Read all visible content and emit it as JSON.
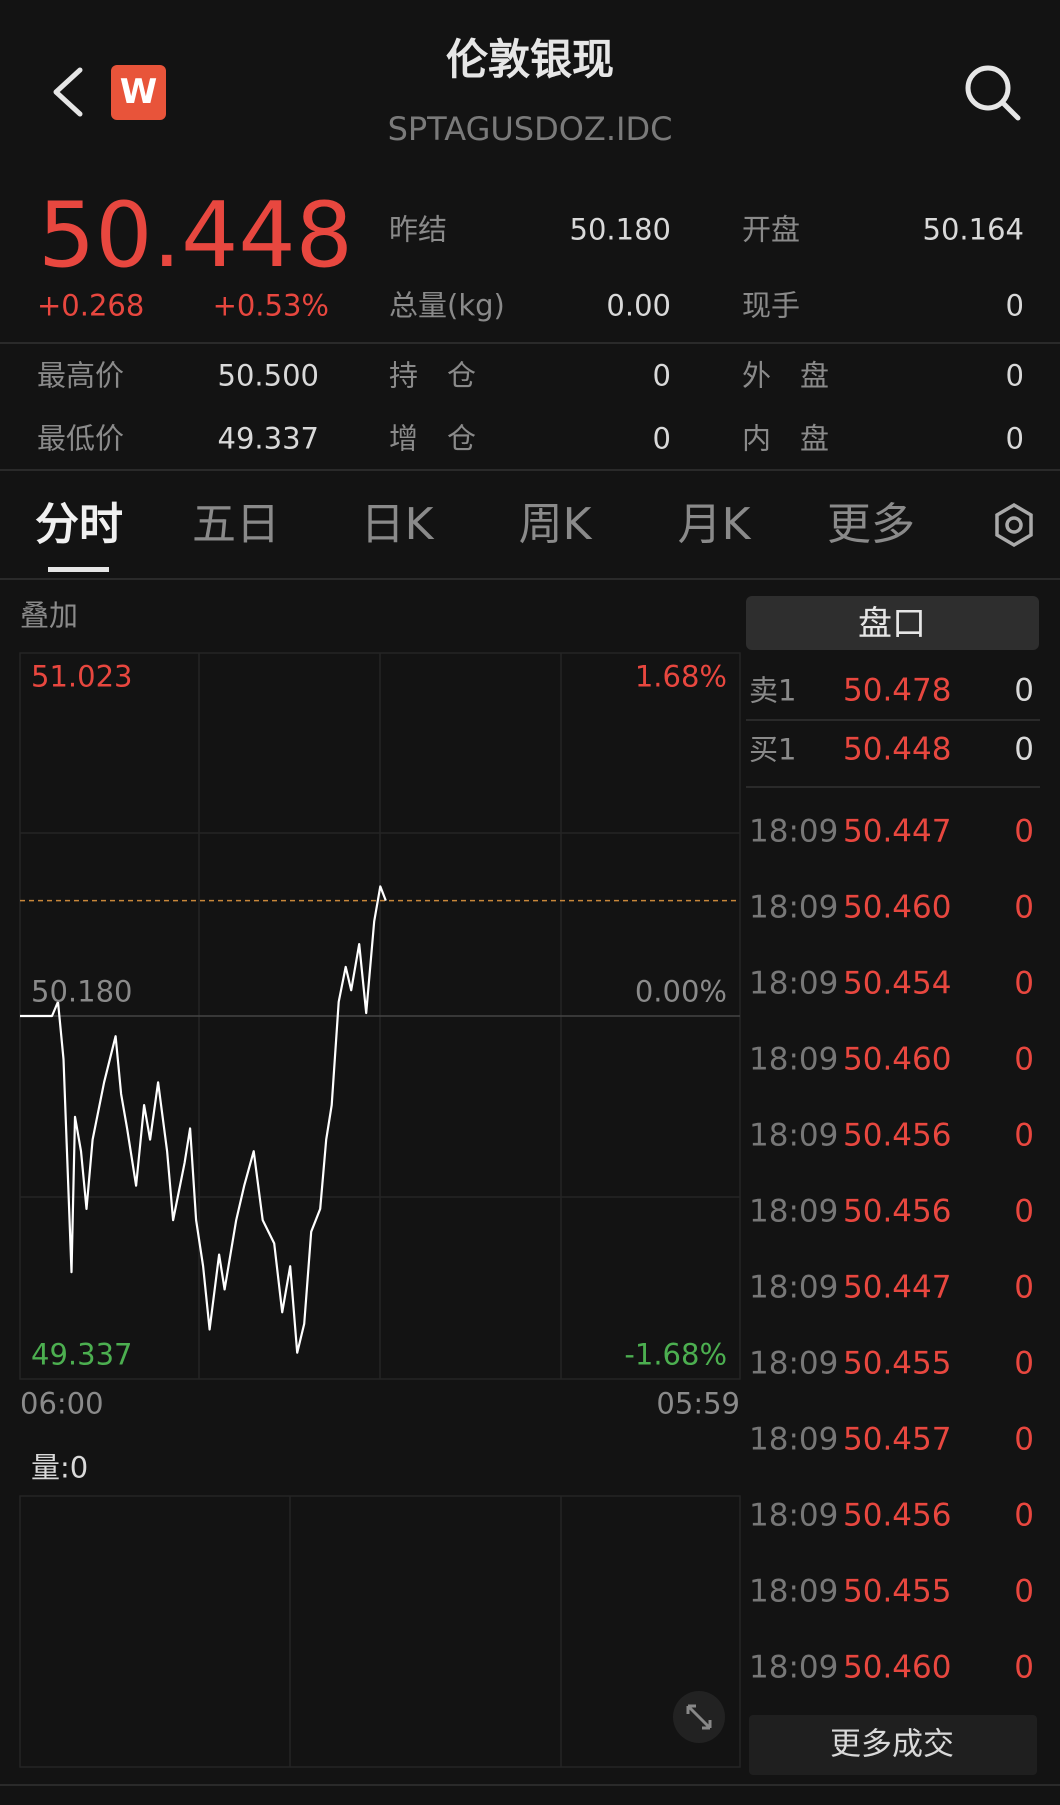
{
  "header": {
    "title": "伦敦银现",
    "subtitle": "SPTAGUSDOZ.IDC"
  },
  "quote": {
    "price": "50.448",
    "change": "+0.268",
    "change_pct": "+0.53%",
    "stats_top": [
      [
        {
          "label": "昨结",
          "value": "50.180"
        },
        {
          "label": "开盘",
          "value": "50.164"
        }
      ],
      [
        {
          "label": "总量(kg)",
          "value": "0.00"
        },
        {
          "label": "现手",
          "value": "0"
        }
      ]
    ],
    "stats_bottom": [
      [
        {
          "label": "最高价",
          "value": "50.500"
        },
        {
          "label": "持　仓",
          "value": "0"
        },
        {
          "label": "外　盘",
          "value": "0"
        }
      ],
      [
        {
          "label": "最低价",
          "value": "49.337"
        },
        {
          "label": "增　仓",
          "value": "0"
        },
        {
          "label": "内　盘",
          "value": "0"
        }
      ]
    ]
  },
  "tabs": {
    "items": [
      "分时",
      "五日",
      "日K",
      "周K",
      "月K",
      "更多"
    ],
    "active": 0
  },
  "overlay_label": "叠加",
  "chart": {
    "type": "line",
    "ylim": [
      49.337,
      51.023
    ],
    "yticks": [
      {
        "value": 51.023,
        "label": "51.023"
      },
      {
        "value": 50.18,
        "label": "50.180"
      },
      {
        "value": 49.337,
        "label": "49.337"
      }
    ],
    "y2lim": [
      -1.68,
      1.68
    ],
    "y2ticks": [
      {
        "value": 1.68,
        "label": "1.68%"
      },
      {
        "value": 0,
        "label": "0.00%"
      },
      {
        "value": -1.68,
        "label": "-1.68%"
      }
    ],
    "xlim": [
      0,
      1439
    ],
    "xticks": [
      {
        "value": 0,
        "label": "06:00"
      },
      {
        "value": 1439,
        "label": "05:59"
      }
    ],
    "series": [
      {
        "color": "#ffffff",
        "x": [
          0,
          64,
          76,
          87,
          103,
          110,
          122,
          133,
          145,
          168,
          191,
          202,
          214,
          232,
          248,
          260,
          276,
          294,
          306,
          329,
          340,
          352,
          366,
          379,
          398,
          409,
          432,
          448,
          467,
          485,
          508,
          524,
          540,
          554,
          568,
          582,
          600,
          612,
          623,
          637,
          651,
          662,
          678,
          692,
          708,
          720,
          731
        ],
        "values": [
          50.18,
          50.18,
          50.213,
          50.08,
          49.585,
          49.946,
          49.866,
          49.732,
          49.893,
          50.026,
          50.133,
          49.999,
          49.919,
          49.786,
          49.973,
          49.893,
          50.026,
          49.866,
          49.706,
          49.839,
          49.919,
          49.706,
          49.599,
          49.452,
          49.626,
          49.545,
          49.706,
          49.786,
          49.866,
          49.706,
          49.652,
          49.492,
          49.599,
          49.398,
          49.465,
          49.679,
          49.732,
          49.893,
          49.973,
          50.213,
          50.294,
          50.24,
          50.347,
          50.187,
          50.4,
          50.481,
          50.448
        ]
      }
    ]
  },
  "volume_label": "量:0",
  "order_book_title": "盘口",
  "order_book": [
    {
      "side": "卖1",
      "price": "50.478",
      "volume": "0"
    },
    {
      "side": "买1",
      "price": "50.448",
      "volume": "0"
    }
  ],
  "trades": [
    {
      "time": "18:09",
      "price": "50.447",
      "volume": "0"
    },
    {
      "time": "18:09",
      "price": "50.460",
      "volume": "0"
    },
    {
      "time": "18:09",
      "price": "50.454",
      "volume": "0"
    },
    {
      "time": "18:09",
      "price": "50.460",
      "volume": "0"
    },
    {
      "time": "18:09",
      "price": "50.456",
      "volume": "0"
    },
    {
      "time": "18:09",
      "price": "50.456",
      "volume": "0"
    },
    {
      "time": "18:09",
      "price": "50.447",
      "volume": "0"
    },
    {
      "time": "18:09",
      "price": "50.455",
      "volume": "0"
    },
    {
      "time": "18:09",
      "price": "50.457",
      "volume": "0"
    },
    {
      "time": "18:09",
      "price": "50.456",
      "volume": "0"
    },
    {
      "time": "18:09",
      "price": "50.455",
      "volume": "0"
    },
    {
      "time": "18:09",
      "price": "50.460",
      "volume": "0"
    }
  ],
  "more_trades": "更多成交"
}
